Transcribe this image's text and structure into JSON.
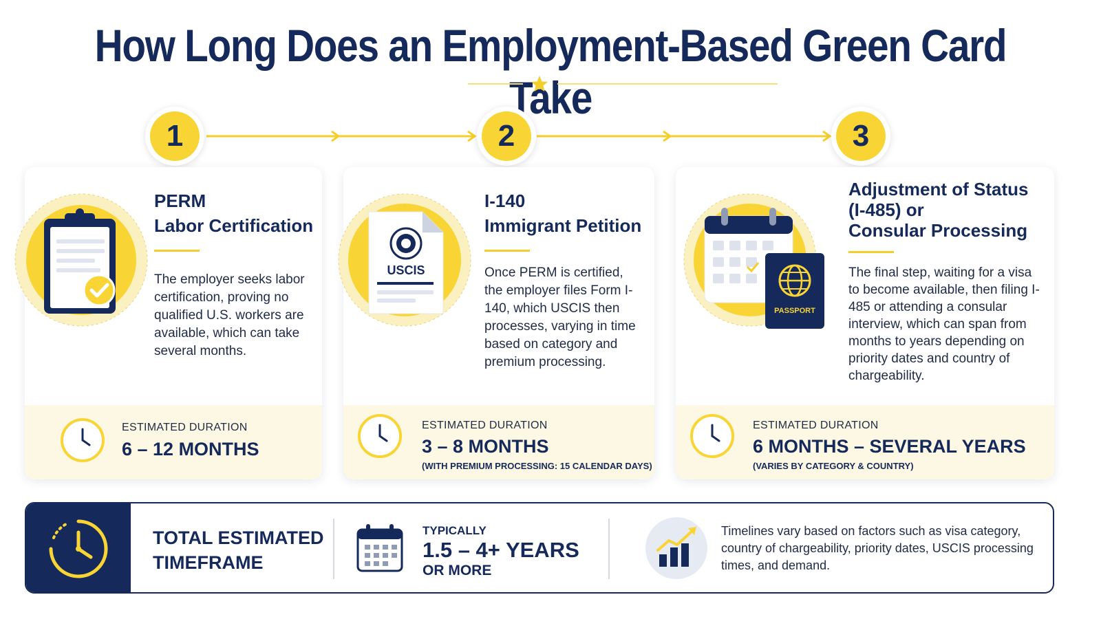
{
  "title": "How Long Does an Employment-Based Green Card Take",
  "colors": {
    "navy": "#15295a",
    "yellow": "#f9d435",
    "cream": "#fdf8e3",
    "text": "#1f2b45"
  },
  "steps": [
    {
      "number": "1",
      "title": "PERM\nLabor Certification",
      "description": "The employer seeks labor certification, proving no qualified U.S. workers are available, which can take several months.",
      "icon": "clipboard-check-icon",
      "duration_label": "ESTIMATED DURATION",
      "duration_value": "6 – 12 MONTHS",
      "duration_note": ""
    },
    {
      "number": "2",
      "title": "I-140\nImmigrant Petition",
      "description": "Once PERM is certified, the employer files Form I-140, which USCIS then processes, varying in time based on category and premium processing.",
      "icon": "uscis-document-icon",
      "icon_text": "USCIS",
      "duration_label": "ESTIMATED DURATION",
      "duration_value": "3 – 8 MONTHS",
      "duration_note": "(WITH PREMIUM PROCESSING: 15 CALENDAR DAYS)"
    },
    {
      "number": "3",
      "title": "Adjustment of Status\n(I-485) or\nConsular Processing",
      "description": "The final step, waiting for a visa to become available, then filing I-485 or attending a consular interview, which can span from months to years depending on priority dates and country of chargeability.",
      "icon": "calendar-passport-icon",
      "icon_text": "PASSPORT",
      "duration_label": "ESTIMATED DURATION",
      "duration_value": "6 MONTHS – SEVERAL YEARS",
      "duration_note": "(VARIES BY CATEGORY & COUNTRY)"
    }
  ],
  "summary": {
    "label": "TOTAL ESTIMATED\nTIMEFRAME",
    "typically": "TYPICALLY",
    "range": "1.5 – 4+ YEARS",
    "more": "OR MORE",
    "note": "Timelines vary based on factors such as visa category, country of chargeability, priority dates, USCIS processing times, and demand."
  }
}
